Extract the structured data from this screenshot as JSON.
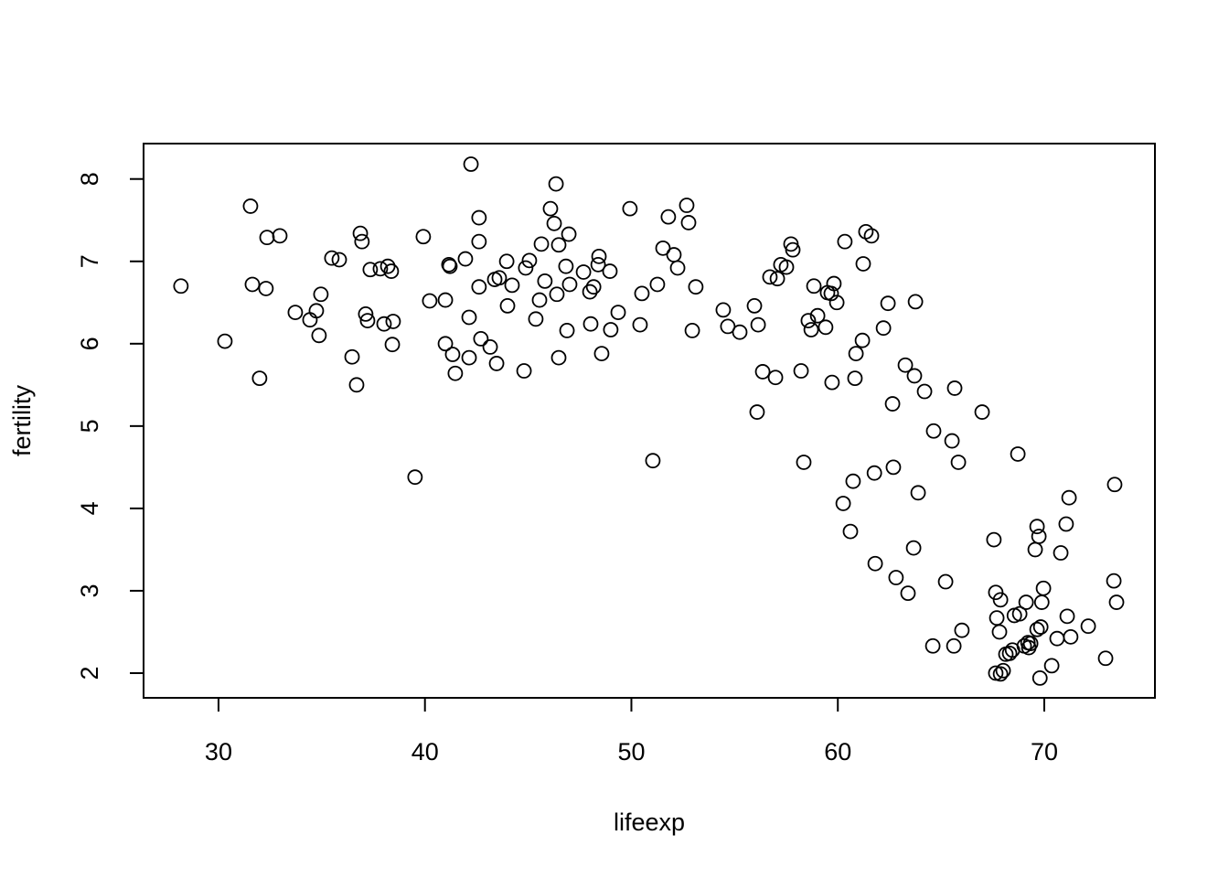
{
  "chart_data": {
    "type": "scatter",
    "x_label": "lifeexp",
    "y_label": "fertility",
    "xlim": [
      26.37,
      75.36
    ],
    "ylim": [
      1.7,
      8.43
    ],
    "xticks": [
      30,
      40,
      50,
      60,
      70
    ],
    "yticks": [
      2,
      3,
      4,
      5,
      6,
      7,
      8
    ],
    "color": "#000000",
    "x": [
      28.18,
      30.31,
      31.55,
      31.64,
      31.99,
      32.35,
      32.3,
      32.97,
      33.72,
      34.43,
      34.74,
      34.87,
      34.96,
      35.49,
      35.85,
      36.47,
      36.69,
      36.87,
      36.95,
      37.13,
      37.22,
      37.35,
      37.84,
      38.02,
      38.2,
      38.37,
      38.46,
      38.42,
      39.52,
      39.92,
      40.23,
      40.99,
      40.99,
      41.16,
      41.21,
      41.34,
      41.47,
      41.96,
      42.14,
      42.14,
      42.23,
      42.62,
      42.62,
      42.62,
      42.71,
      43.16,
      43.38,
      43.47,
      43.6,
      43.96,
      44.0,
      44.22,
      44.8,
      44.88,
      45.06,
      45.37,
      45.55,
      45.64,
      45.81,
      46.08,
      46.26,
      46.35,
      46.39,
      46.48,
      46.48,
      46.83,
      46.88,
      46.97,
      47.01,
      47.68,
      47.99,
      48.03,
      48.17,
      48.39,
      48.43,
      48.56,
      48.96,
      49.0,
      49.36,
      49.93,
      50.42,
      50.51,
      51.04,
      51.26,
      51.53,
      51.79,
      52.06,
      52.24,
      52.68,
      52.77,
      52.95,
      53.12,
      54.45,
      54.67,
      55.25,
      55.96,
      56.09,
      56.14,
      56.36,
      56.71,
      56.98,
      57.07,
      57.24,
      57.51,
      57.73,
      57.82,
      58.22,
      58.35,
      58.57,
      58.71,
      58.84,
      59.02,
      59.41,
      59.5,
      59.68,
      59.72,
      59.81,
      59.95,
      60.26,
      60.34,
      60.61,
      60.74,
      60.83,
      60.88,
      61.19,
      61.23,
      61.36,
      61.63,
      61.77,
      61.81,
      62.21,
      62.43,
      62.65,
      62.69,
      62.82,
      63.27,
      63.4,
      63.67,
      63.71,
      63.76,
      63.89,
      64.2,
      64.6,
      64.64,
      65.22,
      65.53,
      65.62,
      65.66,
      65.84,
      66.01,
      66.99,
      67.56,
      67.65,
      67.65,
      67.7,
      67.83,
      67.88,
      67.88,
      68.01,
      68.14,
      68.32,
      68.46,
      68.55,
      68.72,
      68.81,
      69.03,
      69.12,
      69.21,
      69.25,
      69.34,
      69.56,
      69.65,
      69.65,
      69.74,
      69.79,
      69.83,
      69.88,
      69.96,
      70.36,
      70.62,
      70.8,
      71.06,
      71.11,
      71.2,
      71.28,
      72.13,
      72.97,
      73.37,
      73.41,
      73.5
    ],
    "values": [
      6.7,
      6.03,
      7.67,
      6.72,
      5.58,
      7.29,
      6.67,
      7.31,
      6.38,
      6.29,
      6.4,
      6.1,
      6.6,
      7.04,
      7.02,
      5.84,
      5.5,
      7.34,
      7.24,
      6.36,
      6.28,
      6.9,
      6.91,
      6.24,
      6.94,
      6.88,
      6.27,
      5.99,
      4.38,
      7.3,
      6.52,
      6.53,
      6.0,
      6.96,
      6.94,
      5.87,
      5.64,
      7.03,
      6.32,
      5.83,
      8.18,
      7.53,
      7.24,
      6.69,
      6.06,
      5.96,
      6.78,
      5.76,
      6.8,
      7.0,
      6.46,
      6.71,
      5.67,
      6.92,
      7.01,
      6.3,
      6.53,
      7.21,
      6.76,
      7.64,
      7.46,
      7.94,
      6.6,
      7.2,
      5.83,
      6.94,
      6.16,
      7.33,
      6.72,
      6.87,
      6.63,
      6.24,
      6.69,
      6.96,
      7.06,
      5.88,
      6.88,
      6.17,
      6.38,
      7.64,
      6.23,
      6.61,
      4.58,
      6.72,
      7.16,
      7.54,
      7.08,
      6.92,
      7.68,
      7.47,
      6.16,
      6.69,
      6.41,
      6.21,
      6.14,
      6.46,
      5.17,
      6.23,
      5.66,
      6.81,
      5.59,
      6.79,
      6.96,
      6.93,
      7.21,
      7.14,
      5.67,
      4.56,
      6.28,
      6.17,
      6.7,
      6.34,
      6.2,
      6.62,
      6.61,
      5.53,
      6.73,
      6.5,
      4.06,
      7.24,
      3.72,
      4.33,
      5.58,
      5.88,
      6.04,
      6.97,
      7.36,
      7.31,
      4.43,
      3.33,
      6.19,
      6.49,
      5.27,
      4.5,
      3.16,
      5.74,
      2.97,
      3.52,
      5.61,
      6.51,
      4.19,
      5.42,
      2.33,
      4.94,
      3.11,
      4.82,
      2.33,
      5.46,
      4.56,
      2.52,
      5.17,
      3.62,
      2.0,
      2.98,
      2.67,
      2.5,
      2.89,
      1.99,
      2.03,
      2.23,
      2.24,
      2.28,
      2.7,
      4.66,
      2.72,
      2.33,
      2.86,
      2.37,
      2.31,
      2.36,
      3.5,
      3.78,
      2.53,
      3.66,
      1.94,
      2.56,
      2.86,
      3.03,
      2.09,
      2.42,
      3.46,
      3.81,
      2.69,
      4.13,
      2.44,
      2.57,
      2.18,
      3.12,
      4.29,
      2.86
    ]
  }
}
